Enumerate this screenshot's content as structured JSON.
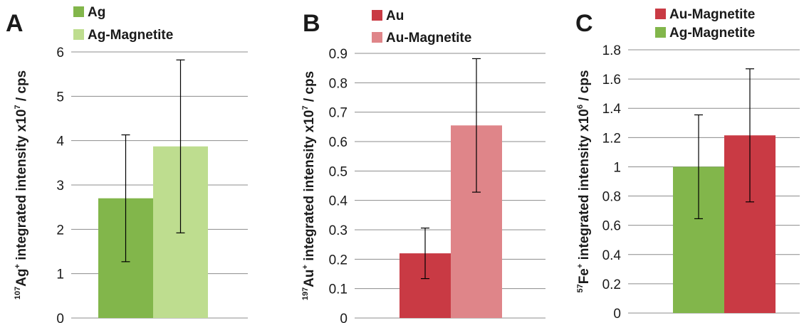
{
  "chart_data": [
    {
      "type": "bar",
      "panel_label": "A",
      "ylabel": {
        "iso": "107",
        "element": "Ag",
        "charge": "+",
        "text": " integrated intensity x10",
        "exp": "7",
        "unit": " / cps"
      },
      "ylim": [
        0,
        6
      ],
      "yticks": [
        "0",
        "1",
        "2",
        "3",
        "4",
        "5",
        "6"
      ],
      "grid": true,
      "legend_position": "top",
      "series": [
        {
          "name": "Ag",
          "value": 2.7,
          "error": 1.43,
          "color": "#82b64b"
        },
        {
          "name": "Ag-Magnetite",
          "value": 3.87,
          "error": 1.95,
          "color": "#bedd8f"
        }
      ]
    },
    {
      "type": "bar",
      "panel_label": "B",
      "ylabel": {
        "iso": "197",
        "element": "Au",
        "charge": "+",
        "text": " integrated intensity x10",
        "exp": "7",
        "unit": " / cps"
      },
      "ylim": [
        0,
        0.9
      ],
      "yticks": [
        "0",
        "0.1",
        "0.2",
        "0.3",
        "0.4",
        "0.5",
        "0.6",
        "0.7",
        "0.8",
        "0.9"
      ],
      "grid": true,
      "legend_position": "top",
      "series": [
        {
          "name": "Au",
          "value": 0.22,
          "error": 0.086,
          "color": "#c93a44"
        },
        {
          "name": "Au-Magnetite",
          "value": 0.655,
          "error": 0.227,
          "color": "#df8589"
        }
      ]
    },
    {
      "type": "bar",
      "panel_label": "C",
      "ylabel": {
        "iso": "57",
        "element": "Fe",
        "charge": "+",
        "text": " integrated intensity x10",
        "exp": "6",
        "unit": " / cps"
      },
      "ylim": [
        0,
        1.8
      ],
      "yticks": [
        "0",
        "0.2",
        "0.4",
        "0.6",
        "0.8",
        "1",
        "1.2",
        "1.4",
        "1.6",
        "1.8"
      ],
      "grid": true,
      "legend_position": "top",
      "bar_order": [
        "Ag-Magnetite",
        "Au-Magnetite"
      ],
      "series": [
        {
          "name": "Au-Magnetite",
          "value": 1.215,
          "error": 0.455,
          "color": "#c93a44"
        },
        {
          "name": "Ag-Magnetite",
          "value": 1.0,
          "error": 0.355,
          "color": "#82b64b"
        }
      ]
    }
  ]
}
